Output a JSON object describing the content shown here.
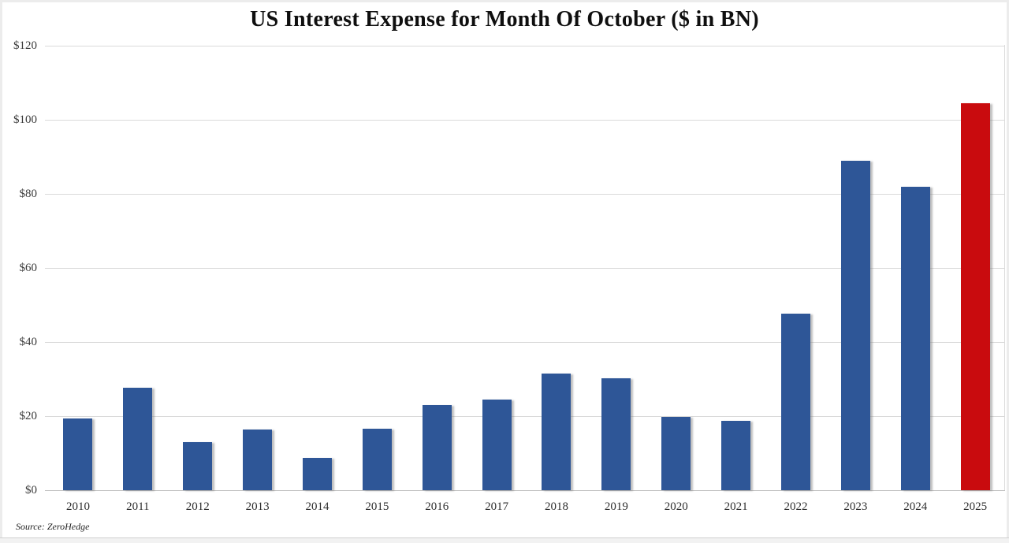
{
  "chart_data": {
    "type": "bar",
    "title": "US Interest Expense for Month Of October ($ in BN)",
    "source": "Source: ZeroHedge",
    "categories": [
      "2010",
      "2011",
      "2012",
      "2013",
      "2014",
      "2015",
      "2016",
      "2017",
      "2018",
      "2019",
      "2020",
      "2021",
      "2022",
      "2023",
      "2024",
      "2025"
    ],
    "values": [
      19.4,
      27.6,
      12.9,
      16.4,
      8.8,
      16.7,
      22.9,
      24.5,
      31.6,
      30.2,
      19.9,
      18.8,
      47.6,
      88.9,
      81.9,
      104.4
    ],
    "xlabel": "",
    "ylabel": "",
    "ylim": [
      0,
      120
    ],
    "y_ticks": [
      {
        "label": "$120",
        "value": 120
      },
      {
        "label": "$100",
        "value": 100
      },
      {
        "label": "$80",
        "value": 80
      },
      {
        "label": "$60",
        "value": 60
      },
      {
        "label": "$40",
        "value": 40
      },
      {
        "label": "$20",
        "value": 20
      },
      {
        "label": "$0",
        "value": 0
      }
    ],
    "grid": true,
    "legend": null,
    "bar_color": "#2E5697",
    "highlight_color": "#C90B0E",
    "highlight_category": "2025",
    "gridline_color": "#dadada",
    "axis_line_color": "#c0c0c0"
  }
}
